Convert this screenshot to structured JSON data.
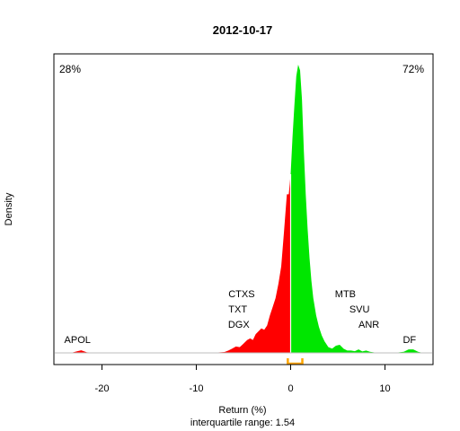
{
  "chart_data": {
    "type": "area",
    "title": "2012-10-17",
    "xlabel": "Return (%)",
    "ylabel": "Density",
    "subtitle": "interquartile range: 1.54",
    "xlim": [
      -25,
      15
    ],
    "ylim": [
      0,
      1
    ],
    "x_ticks": [
      -20,
      -10,
      0,
      10
    ],
    "pct_negative": "28%",
    "pct_positive": "72%",
    "colors": {
      "negative": "#ff0000",
      "positive": "#00e600",
      "iqr": "#ffa500",
      "baseline": "#bebebe"
    },
    "iqr": [
      -0.3,
      1.24
    ],
    "density": {
      "x": [
        -24,
        -23.2,
        -22.6,
        -22.2,
        -21.6,
        -20.5,
        -15,
        -10,
        -8,
        -7,
        -6.6,
        -6.2,
        -5.8,
        -5.4,
        -5.0,
        -4.6,
        -4.3,
        -4.0,
        -3.7,
        -3.4,
        -3.1,
        -2.8,
        -2.5,
        -2.2,
        -1.9,
        -1.6,
        -1.3,
        -1.0,
        -0.7,
        -0.4,
        -0.2,
        0.0,
        0.2,
        0.4,
        0.6,
        0.8,
        1.0,
        1.2,
        1.4,
        1.6,
        1.8,
        2.0,
        2.2,
        2.4,
        2.7,
        3.0,
        3.3,
        3.6,
        4.0,
        4.4,
        4.8,
        5.2,
        5.6,
        6.0,
        6.4,
        6.8,
        7.2,
        7.6,
        8.0,
        8.4,
        8.8,
        9.2,
        10,
        11,
        12,
        12.5,
        13,
        13.5,
        14,
        15
      ],
      "y": [
        0,
        0.001,
        0.006,
        0.009,
        0.002,
        0,
        0,
        0,
        0.001,
        0.003,
        0.008,
        0.015,
        0.022,
        0.02,
        0.032,
        0.045,
        0.05,
        0.045,
        0.065,
        0.075,
        0.085,
        0.08,
        0.095,
        0.13,
        0.16,
        0.19,
        0.24,
        0.3,
        0.42,
        0.55,
        0.55,
        0.62,
        0.75,
        0.86,
        0.96,
        1.0,
        0.98,
        0.88,
        0.7,
        0.55,
        0.43,
        0.33,
        0.25,
        0.19,
        0.13,
        0.09,
        0.06,
        0.04,
        0.02,
        0.015,
        0.025,
        0.028,
        0.015,
        0.008,
        0.008,
        0.006,
        0.012,
        0.005,
        0.008,
        0.004,
        0.002,
        0,
        0,
        0,
        0.004,
        0.012,
        0.012,
        0.004,
        0,
        0
      ]
    },
    "stock_labels": [
      {
        "text": "APOL",
        "x": -22.6,
        "level": 0
      },
      {
        "text": "CTXS",
        "x": -5.2,
        "level": 3
      },
      {
        "text": "TXT",
        "x": -5.6,
        "level": 2
      },
      {
        "text": "DGX",
        "x": -5.5,
        "level": 1
      },
      {
        "text": "MTB",
        "x": 5.8,
        "level": 3
      },
      {
        "text": "SVU",
        "x": 7.3,
        "level": 2
      },
      {
        "text": "ANR",
        "x": 8.3,
        "level": 1
      },
      {
        "text": "DF",
        "x": 12.6,
        "level": 0
      }
    ]
  }
}
